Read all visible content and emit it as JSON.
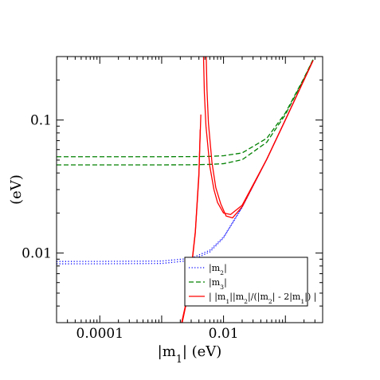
{
  "chart_data": {
    "type": "line",
    "xlabel": "|m1| (eV)",
    "ylabel": "(eV)",
    "x_scale": "log",
    "y_scale": "log",
    "xlim": [
      2e-05,
      0.4
    ],
    "ylim": [
      0.003,
      0.3
    ],
    "x_ticks": [
      {
        "value": 0.0001,
        "label": "0.0001"
      },
      {
        "value": 0.01,
        "label": "0.01"
      }
    ],
    "y_ticks": [
      {
        "value": 0.01,
        "label": "0.01"
      },
      {
        "value": 0.1,
        "label": "0.1"
      }
    ],
    "legend_position": "bottom-right",
    "colors": {
      "m2": "#0000ff",
      "m3": "#008000",
      "ratio": "#ff0000"
    },
    "series": [
      {
        "name": "|m2|",
        "style": "dotted",
        "color": "#0000ff",
        "curves": [
          {
            "x": [
              2e-05,
              0.0001,
              0.001,
              0.003,
              0.006,
              0.01,
              0.02,
              0.05,
              0.1,
              0.2,
              0.28
            ],
            "y": [
              0.00865,
              0.00866,
              0.00871,
              0.00914,
              0.0105,
              0.0132,
              0.0222,
              0.0507,
              0.1004,
              0.2002,
              0.28
            ]
          },
          {
            "x": [
              2e-05,
              0.0001,
              0.001,
              0.003,
              0.006,
              0.01,
              0.02,
              0.05,
              0.1,
              0.2,
              0.28
            ],
            "y": [
              0.0083,
              0.00831,
              0.00836,
              0.0088,
              0.0102,
              0.013,
              0.0221,
              0.0507,
              0.1003,
              0.2002,
              0.28
            ]
          }
        ]
      },
      {
        "name": "|m3|",
        "style": "dashed",
        "color": "#008000",
        "curves": [
          {
            "x": [
              2e-05,
              0.0001,
              0.001,
              0.003,
              0.006,
              0.01,
              0.02,
              0.05,
              0.1,
              0.2,
              0.28
            ],
            "y": [
              0.053,
              0.053,
              0.053,
              0.0531,
              0.0533,
              0.0539,
              0.0566,
              0.0729,
              0.113,
              0.207,
              0.285
            ]
          },
          {
            "x": [
              2e-05,
              0.0001,
              0.001,
              0.003,
              0.006,
              0.01,
              0.02,
              0.05,
              0.1,
              0.2,
              0.28
            ],
            "y": [
              0.046,
              0.046,
              0.046,
              0.0461,
              0.0464,
              0.047,
              0.0503,
              0.0681,
              0.11,
              0.205,
              0.284
            ]
          }
        ]
      },
      {
        "name": "| |m1||m2|/(|m2| - 2|m1|) |",
        "style": "solid",
        "color": "#ff0000",
        "curves": [
          {
            "x": [
              0.0021,
              0.0025,
              0.003,
              0.0035,
              0.004,
              0.0043
            ],
            "y": [
              0.003,
              0.0043,
              0.0076,
              0.0145,
              0.04,
              0.11
            ]
          },
          {
            "x": [
              0.00215,
              0.0025,
              0.003,
              0.0035,
              0.004,
              0.0042
            ],
            "y": [
              0.003,
              0.0042,
              0.0074,
              0.0142,
              0.038,
              0.085
            ]
          },
          {
            "x": [
              0.00475,
              0.0048,
              0.0049,
              0.0052,
              0.006,
              0.007,
              0.008,
              0.01,
              0.013,
              0.02,
              0.05,
              0.1,
              0.2,
              0.28
            ],
            "y": [
              0.3,
              0.24,
              0.16,
              0.09,
              0.045,
              0.03,
              0.024,
              0.02,
              0.0195,
              0.0229,
              0.0508,
              0.1004,
              0.2002,
              0.28
            ]
          },
          {
            "x": [
              0.00525,
              0.0053,
              0.0054,
              0.0057,
              0.0065,
              0.0075,
              0.009,
              0.011,
              0.014,
              0.02,
              0.05,
              0.1,
              0.2,
              0.28
            ],
            "y": [
              0.3,
              0.25,
              0.17,
              0.095,
              0.048,
              0.031,
              0.0235,
              0.019,
              0.0184,
              0.0223,
              0.0507,
              0.1003,
              0.2002,
              0.28
            ]
          }
        ]
      }
    ],
    "legend": [
      {
        "label": "|m2|",
        "style": "dotted",
        "color": "#0000ff"
      },
      {
        "label": "|m3|",
        "style": "dashed",
        "color": "#008000"
      },
      {
        "label": "| |m1||m2|/(|m2| - 2|m1|) |",
        "style": "solid",
        "color": "#ff0000"
      }
    ]
  }
}
